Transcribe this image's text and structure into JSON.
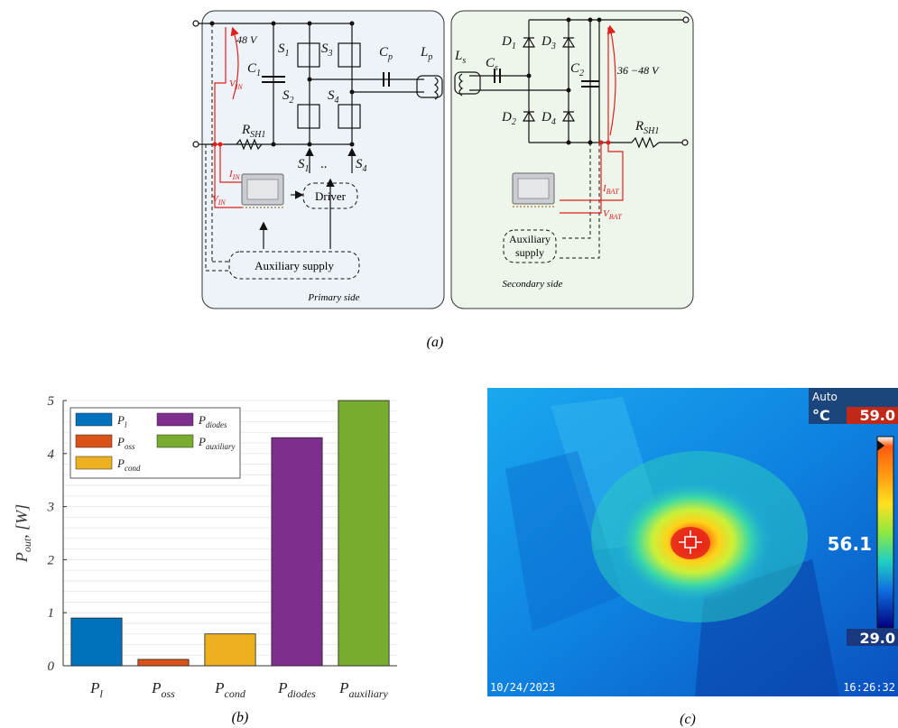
{
  "figure_a": {
    "caption": "(a)",
    "primary": {
      "side_label": "Primary side",
      "vin_value": "48 V",
      "c1": "C",
      "c1_sub": "1",
      "s1": "S",
      "s1_sub": "1",
      "s2": "S",
      "s2_sub": "2",
      "s3": "S",
      "s3_sub": "3",
      "s4": "S",
      "s4_sub": "4",
      "cp": "C",
      "cp_sub": "p",
      "lp": "L",
      "lp_sub": "p",
      "vin_label": "V",
      "vin_label_sub": "IN",
      "vin_label2": "V",
      "vin_label2_sub": "IN",
      "iin_label": "I",
      "iin_label_sub": "IN",
      "rsh": "R",
      "rsh_sub": "SH1",
      "gate_left": "S",
      "gate_left_sub": "1",
      "gate_dots": "..",
      "gate_right": "S",
      "gate_right_sub": "4",
      "driver": "Driver",
      "aux": "Auxiliary supply"
    },
    "secondary": {
      "side_label": "Secondary side",
      "ls": "L",
      "ls_sub": "s",
      "cs": "C",
      "cs_sub": "s",
      "d1": "D",
      "d1_sub": "1",
      "d2": "D",
      "d2_sub": "2",
      "d3": "D",
      "d3_sub": "3",
      "d4": "D",
      "d4_sub": "4",
      "c2": "C",
      "c2_sub": "2",
      "vbat_range": "36 −48 V",
      "rsh": "R",
      "rsh_sub": "SH1",
      "ibat": "I",
      "ibat_sub": "BAT",
      "vbat": "V",
      "vbat_sub": "BAT",
      "aux_line1": "Auxiliary",
      "aux_line2": "supply"
    }
  },
  "figure_b": {
    "caption": "(b)",
    "chart_data": {
      "type": "bar",
      "categories": [
        "P_l",
        "P_oss",
        "P_cond",
        "P_diodes",
        "P_auxiliary"
      ],
      "category_labels": [
        {
          "main": "P",
          "sub": "l"
        },
        {
          "main": "P",
          "sub": "oss"
        },
        {
          "main": "P",
          "sub": "cond"
        },
        {
          "main": "P",
          "sub": "diodes"
        },
        {
          "main": "P",
          "sub": "auxiliary"
        }
      ],
      "values": [
        0.9,
        0.12,
        0.6,
        4.3,
        5.0
      ],
      "colors": [
        "#0072bd",
        "#d95319",
        "#edb120",
        "#7e2f8e",
        "#77ac30"
      ],
      "ylabel_main": "P",
      "ylabel_sub": "out",
      "ylabel_unit": ", [W]",
      "ylim": [
        0,
        5
      ],
      "yticks": [
        "0",
        "1",
        "2",
        "3",
        "4",
        "5"
      ],
      "grid": true,
      "legend_position": "top-left"
    }
  },
  "figure_c": {
    "caption": "(c)",
    "mode": "Auto",
    "unit": "°C",
    "max": "59.0",
    "min": "29.0",
    "center_temp": "56.1",
    "date": "10/24/2023",
    "time": "16:26:32"
  }
}
